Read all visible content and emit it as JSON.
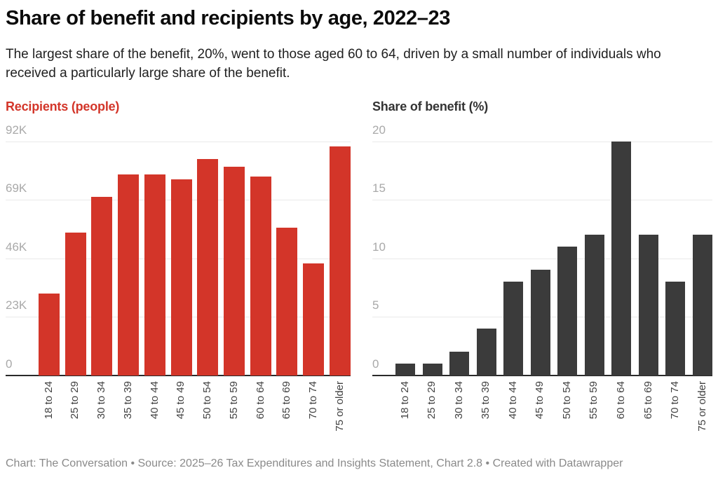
{
  "title": "Share of benefit and recipients by age, 2022–23",
  "subtitle": "The largest share of the benefit, 20%, went to those aged 60 to 64, driven by a small number of individuals who received a particularly large share of the benefit.",
  "footer": "Chart: The Conversation • Source: 2025–26 Tax Expenditures and Insights Statement, Chart 2.8 • Created with Datawrapper",
  "colors": {
    "recipients_bar": "#d33529",
    "benefit_bar": "#3b3b3b",
    "tick_label": "#a9a9a9",
    "gridline": "#e9e9e9",
    "axis_line": "#2a2a2a",
    "x_label": "#424242",
    "footer_text": "#8a8a8a"
  },
  "chart_data": [
    {
      "type": "bar",
      "title": "Recipients (people)",
      "title_color": "#d33529",
      "bar_color": "#d33529",
      "categories": [
        "18 to 24",
        "25 to 29",
        "30 to 34",
        "35 to 39",
        "40 to 44",
        "45 to 49",
        "50 to 54",
        "55 to 59",
        "60 to 64",
        "65 to 69",
        "70 to 74",
        "75 or older"
      ],
      "values": [
        32000,
        56000,
        70000,
        79000,
        79000,
        77000,
        85000,
        82000,
        78000,
        58000,
        44000,
        90000
      ],
      "xlabel": "",
      "ylabel": "Recipients (people)",
      "ylim": [
        0,
        92000
      ],
      "yticks": [
        {
          "label": "92K",
          "value": 92000
        },
        {
          "label": "69K",
          "value": 69000
        },
        {
          "label": "46K",
          "value": 46000
        },
        {
          "label": "23K",
          "value": 23000
        },
        {
          "label": "0",
          "value": 0
        }
      ],
      "grid": "horizontal",
      "legend": "none"
    },
    {
      "type": "bar",
      "title": "Share of benefit (%)",
      "title_color": "#333333",
      "bar_color": "#3b3b3b",
      "categories": [
        "18 to 24",
        "25 to 29",
        "30 to 34",
        "35 to 39",
        "40 to 44",
        "45 to 49",
        "50 to 54",
        "55 to 59",
        "60 to 64",
        "65 to 69",
        "70 to 74",
        "75 or older"
      ],
      "values": [
        1,
        1,
        2,
        4,
        8,
        9,
        11,
        12,
        20,
        12,
        8,
        12
      ],
      "xlabel": "",
      "ylabel": "Share of benefit (%)",
      "ylim": [
        0,
        20
      ],
      "yticks": [
        {
          "label": "20",
          "value": 20
        },
        {
          "label": "15",
          "value": 15
        },
        {
          "label": "10",
          "value": 10
        },
        {
          "label": "5",
          "value": 5
        },
        {
          "label": "0",
          "value": 0
        }
      ],
      "grid": "horizontal",
      "legend": "none"
    }
  ]
}
